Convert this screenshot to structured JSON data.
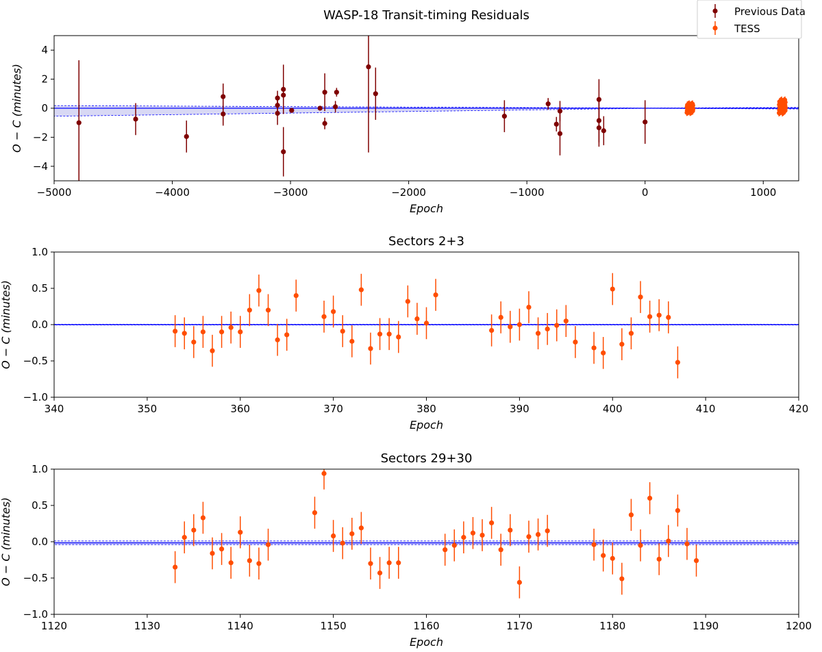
{
  "legend": {
    "items": [
      {
        "label": "Previous Data",
        "color": "#7f0000"
      },
      {
        "label": "TESS",
        "color": "#ff4d00"
      }
    ]
  },
  "colors": {
    "previous": "#7f0000",
    "tess": "#ff4d00",
    "model_line": "#0000ff",
    "band_fill": "#c8c8f0"
  },
  "chart_data": [
    {
      "type": "scatter",
      "title": "WASP-18 Transit-timing Residuals",
      "xlabel": "Epoch",
      "ylabel": "O − C (minutes)",
      "xlim": [
        -5000,
        1300
      ],
      "ylim": [
        -5,
        5
      ],
      "xticks": [
        -5000,
        -4000,
        -3000,
        -2000,
        -1000,
        0,
        1000
      ],
      "xtick_labels": [
        "−5000",
        "−4000",
        "−3000",
        "−2000",
        "−1000",
        "0",
        "1000"
      ],
      "yticks": [
        -4,
        -2,
        0,
        2,
        4
      ],
      "ytick_labels": [
        "−4",
        "−2",
        "0",
        "2",
        "4"
      ],
      "model_band": {
        "x": [
          -5000,
          0,
          1300
        ],
        "upper": [
          0.18,
          0.01,
          0.05
        ],
        "lower": [
          -0.55,
          -0.01,
          -0.05
        ]
      },
      "series": [
        {
          "name": "Previous Data",
          "points": [
            {
              "x": -4790,
              "y": -1.0,
              "err": 4.3
            },
            {
              "x": -4310,
              "y": -0.75,
              "err": 1.1
            },
            {
              "x": -3880,
              "y": -1.95,
              "err": 1.1
            },
            {
              "x": -3570,
              "y": 0.8,
              "err": 0.9
            },
            {
              "x": -3570,
              "y": -0.4,
              "err": 0.8
            },
            {
              "x": -3110,
              "y": 0.7,
              "err": 0.5
            },
            {
              "x": -3110,
              "y": 0.2,
              "err": 0.6
            },
            {
              "x": -3110,
              "y": -0.35,
              "err": 0.8
            },
            {
              "x": -3060,
              "y": 1.3,
              "err": 1.7
            },
            {
              "x": -3060,
              "y": 0.9,
              "err": 0.6
            },
            {
              "x": -3060,
              "y": -3.0,
              "err": 1.7
            },
            {
              "x": -2990,
              "y": -0.15,
              "err": 0.15
            },
            {
              "x": -2750,
              "y": 0.0,
              "err": 0.15
            },
            {
              "x": -2710,
              "y": 1.1,
              "err": 1.3
            },
            {
              "x": -2710,
              "y": -1.05,
              "err": 0.4
            },
            {
              "x": -2610,
              "y": 1.1,
              "err": 0.3
            },
            {
              "x": -2620,
              "y": 0.1,
              "err": 0.4
            },
            {
              "x": -2340,
              "y": 2.85,
              "err": 5.9
            },
            {
              "x": -2280,
              "y": 1.0,
              "err": 1.8
            },
            {
              "x": -1190,
              "y": -0.55,
              "err": 1.1
            },
            {
              "x": -820,
              "y": 0.3,
              "err": 0.4
            },
            {
              "x": -750,
              "y": -1.1,
              "err": 0.5
            },
            {
              "x": -720,
              "y": -0.2,
              "err": 0.7
            },
            {
              "x": -720,
              "y": -1.75,
              "err": 1.5
            },
            {
              "x": -390,
              "y": 0.6,
              "err": 1.4
            },
            {
              "x": -390,
              "y": -0.85,
              "err": 1.5
            },
            {
              "x": -390,
              "y": -1.35,
              "err": 1.3
            },
            {
              "x": -350,
              "y": -1.55,
              "err": 1.0
            },
            {
              "x": 0,
              "y": -0.95,
              "err": 1.5
            }
          ]
        },
        {
          "name": "TESS",
          "clusters": [
            {
              "x_min": 353,
              "x_max": 407,
              "y_min": -0.5,
              "y_max": 0.5
            },
            {
              "x_min": 1133,
              "x_max": 1189,
              "y_min": -0.55,
              "y_max": 0.95
            }
          ]
        }
      ]
    },
    {
      "type": "scatter",
      "title": "Sectors 2+3",
      "xlabel": "Epoch",
      "ylabel": "O − C (minutes)",
      "xlim": [
        340,
        420
      ],
      "ylim": [
        -1.0,
        1.0
      ],
      "xticks": [
        340,
        350,
        360,
        370,
        380,
        390,
        400,
        410,
        420
      ],
      "xtick_labels": [
        "340",
        "350",
        "360",
        "370",
        "380",
        "390",
        "400",
        "410",
        "420"
      ],
      "yticks": [
        -1.0,
        -0.5,
        0.0,
        0.5,
        1.0
      ],
      "ytick_labels": [
        "−1.0",
        "−0.5",
        "0.0",
        "0.5",
        "1.0"
      ],
      "model_band": {
        "x": [
          340,
          420
        ],
        "upper": [
          0.005,
          0.005
        ],
        "lower": [
          -0.005,
          -0.005
        ]
      },
      "series": [
        {
          "name": "TESS",
          "x": [
            353,
            354,
            355,
            356,
            357,
            358,
            359,
            360,
            361,
            362,
            363,
            364,
            365,
            366,
            369,
            370,
            371,
            372,
            373,
            374,
            375,
            376,
            377,
            378,
            379,
            380,
            381,
            387,
            388,
            389,
            390,
            391,
            392,
            393,
            394,
            395,
            396,
            398,
            399,
            400,
            401,
            402,
            403,
            404,
            405,
            406,
            407
          ],
          "y": [
            -0.09,
            -0.12,
            -0.24,
            -0.1,
            -0.36,
            -0.1,
            -0.04,
            -0.1,
            0.2,
            0.47,
            0.2,
            -0.21,
            -0.14,
            0.4,
            0.11,
            0.18,
            -0.09,
            -0.23,
            0.48,
            -0.33,
            -0.13,
            -0.13,
            -0.17,
            0.32,
            0.08,
            0.02,
            0.41,
            -0.08,
            0.1,
            -0.03,
            0.0,
            0.24,
            -0.12,
            -0.06,
            -0.01,
            0.05,
            -0.24,
            -0.32,
            -0.39,
            0.49,
            -0.27,
            -0.12,
            0.38,
            0.11,
            0.13,
            0.1,
            -0.52
          ],
          "err": 0.22
        }
      ]
    },
    {
      "type": "scatter",
      "title": "Sectors 29+30",
      "xlabel": "Epoch",
      "ylabel": "O − C (minutes)",
      "xlim": [
        1120,
        1200
      ],
      "ylim": [
        -1.0,
        1.0
      ],
      "xticks": [
        1120,
        1130,
        1140,
        1150,
        1160,
        1170,
        1180,
        1190,
        1200
      ],
      "xtick_labels": [
        "1120",
        "1130",
        "1140",
        "1150",
        "1160",
        "1170",
        "1180",
        "1190",
        "1200"
      ],
      "yticks": [
        -1.0,
        -0.5,
        0.0,
        0.5,
        1.0
      ],
      "ytick_labels": [
        "−1.0",
        "−0.5",
        "0.0",
        "0.5",
        "1.0"
      ],
      "model_band": {
        "x": [
          1120,
          1200
        ],
        "upper": [
          0.01,
          0.01
        ],
        "lower": [
          -0.04,
          -0.04
        ]
      },
      "series": [
        {
          "name": "TESS",
          "x": [
            1133,
            1134,
            1135,
            1136,
            1137,
            1138,
            1139,
            1140,
            1141,
            1142,
            1143,
            1148,
            1149,
            1150,
            1151,
            1152,
            1153,
            1154,
            1155,
            1156,
            1157,
            1162,
            1163,
            1164,
            1165,
            1166,
            1167,
            1168,
            1169,
            1170,
            1171,
            1172,
            1173,
            1178,
            1179,
            1180,
            1181,
            1182,
            1183,
            1184,
            1185,
            1186,
            1187,
            1188,
            1189
          ],
          "y": [
            -0.35,
            0.06,
            0.16,
            0.33,
            -0.16,
            -0.1,
            -0.29,
            0.13,
            -0.26,
            -0.3,
            -0.04,
            0.4,
            0.94,
            0.08,
            -0.02,
            0.11,
            0.19,
            -0.3,
            -0.43,
            -0.29,
            -0.29,
            -0.11,
            -0.05,
            0.06,
            0.12,
            0.09,
            0.26,
            -0.11,
            0.16,
            -0.56,
            0.07,
            0.1,
            0.15,
            -0.04,
            -0.19,
            -0.23,
            -0.51,
            0.37,
            -0.05,
            0.6,
            -0.24,
            0.01,
            0.43,
            -0.03,
            -0.26
          ],
          "err": 0.22
        }
      ]
    }
  ]
}
